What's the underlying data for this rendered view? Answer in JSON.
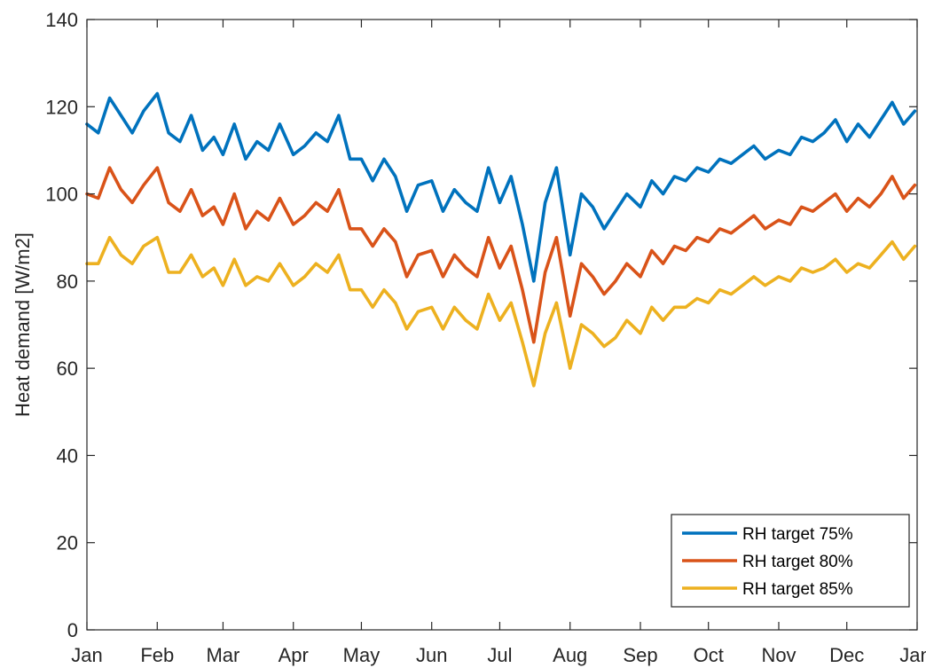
{
  "chart_data": {
    "type": "line",
    "title": "",
    "xlabel": "",
    "ylabel": "Heat demand [W/m2]",
    "ylim": [
      0,
      140
    ],
    "yticks": [
      0,
      20,
      40,
      60,
      80,
      100,
      120,
      140
    ],
    "xlim": [
      "2000-01-01",
      "2001-01-01"
    ],
    "xticks": [
      {
        "date": "2000-01-01",
        "label": "Jan"
      },
      {
        "date": "2000-02-01",
        "label": "Feb"
      },
      {
        "date": "2000-03-01",
        "label": "Mar"
      },
      {
        "date": "2000-04-01",
        "label": "Apr"
      },
      {
        "date": "2000-05-01",
        "label": "May"
      },
      {
        "date": "2000-06-01",
        "label": "Jun"
      },
      {
        "date": "2000-07-01",
        "label": "Jul"
      },
      {
        "date": "2000-08-01",
        "label": "Aug"
      },
      {
        "date": "2000-09-01",
        "label": "Sep"
      },
      {
        "date": "2000-10-01",
        "label": "Oct"
      },
      {
        "date": "2000-11-01",
        "label": "Nov"
      },
      {
        "date": "2000-12-01",
        "label": "Dec"
      },
      {
        "date": "2001-01-01",
        "label": "Jan"
      }
    ],
    "grid": false,
    "legend_position": "bottom-right",
    "x": [
      "2000-01-01",
      "2000-01-06",
      "2000-01-11",
      "2000-01-16",
      "2000-01-21",
      "2000-01-26",
      "2000-02-01",
      "2000-02-06",
      "2000-02-11",
      "2000-02-16",
      "2000-02-21",
      "2000-02-26",
      "2000-03-01",
      "2000-03-06",
      "2000-03-11",
      "2000-03-16",
      "2000-03-21",
      "2000-03-26",
      "2000-04-01",
      "2000-04-06",
      "2000-04-11",
      "2000-04-16",
      "2000-04-21",
      "2000-04-26",
      "2000-05-01",
      "2000-05-06",
      "2000-05-11",
      "2000-05-16",
      "2000-05-21",
      "2000-05-26",
      "2000-06-01",
      "2000-06-06",
      "2000-06-11",
      "2000-06-16",
      "2000-06-21",
      "2000-06-26",
      "2000-07-01",
      "2000-07-06",
      "2000-07-11",
      "2000-07-16",
      "2000-07-21",
      "2000-07-26",
      "2000-08-01",
      "2000-08-06",
      "2000-08-11",
      "2000-08-16",
      "2000-08-21",
      "2000-08-26",
      "2000-09-01",
      "2000-09-06",
      "2000-09-11",
      "2000-09-16",
      "2000-09-21",
      "2000-09-26",
      "2000-10-01",
      "2000-10-06",
      "2000-10-11",
      "2000-10-16",
      "2000-10-21",
      "2000-10-26",
      "2000-11-01",
      "2000-11-06",
      "2000-11-11",
      "2000-11-16",
      "2000-11-21",
      "2000-11-26",
      "2000-12-01",
      "2000-12-06",
      "2000-12-11",
      "2000-12-16",
      "2000-12-21",
      "2000-12-26",
      "2000-12-31"
    ],
    "series": [
      {
        "name": "RH target 75%",
        "color": "#0072BD",
        "values": [
          116,
          114,
          122,
          118,
          114,
          119,
          123,
          114,
          112,
          118,
          110,
          113,
          109,
          116,
          108,
          112,
          110,
          116,
          109,
          111,
          114,
          112,
          118,
          108,
          108,
          103,
          108,
          104,
          96,
          102,
          103,
          96,
          101,
          98,
          96,
          106,
          98,
          104,
          93,
          80,
          98,
          106,
          86,
          100,
          97,
          92,
          96,
          100,
          97,
          103,
          100,
          104,
          103,
          106,
          105,
          108,
          107,
          109,
          111,
          108,
          110,
          109,
          113,
          112,
          114,
          117,
          112,
          116,
          113,
          117,
          121,
          116,
          119
        ]
      },
      {
        "name": "RH target 80%",
        "color": "#D95319",
        "values": [
          100,
          99,
          106,
          101,
          98,
          102,
          106,
          98,
          96,
          101,
          95,
          97,
          93,
          100,
          92,
          96,
          94,
          99,
          93,
          95,
          98,
          96,
          101,
          92,
          92,
          88,
          92,
          89,
          81,
          86,
          87,
          81,
          86,
          83,
          81,
          90,
          83,
          88,
          78,
          66,
          82,
          90,
          72,
          84,
          81,
          77,
          80,
          84,
          81,
          87,
          84,
          88,
          87,
          90,
          89,
          92,
          91,
          93,
          95,
          92,
          94,
          93,
          97,
          96,
          98,
          100,
          96,
          99,
          97,
          100,
          104,
          99,
          102
        ]
      },
      {
        "name": "RH target 85%",
        "color": "#EDB120",
        "values": [
          84,
          84,
          90,
          86,
          84,
          88,
          90,
          82,
          82,
          86,
          81,
          83,
          79,
          85,
          79,
          81,
          80,
          84,
          79,
          81,
          84,
          82,
          86,
          78,
          78,
          74,
          78,
          75,
          69,
          73,
          74,
          69,
          74,
          71,
          69,
          77,
          71,
          75,
          66,
          56,
          68,
          75,
          60,
          70,
          68,
          65,
          67,
          71,
          68,
          74,
          71,
          74,
          74,
          76,
          75,
          78,
          77,
          79,
          81,
          79,
          81,
          80,
          83,
          82,
          83,
          85,
          82,
          84,
          83,
          86,
          89,
          85,
          88
        ]
      }
    ]
  }
}
